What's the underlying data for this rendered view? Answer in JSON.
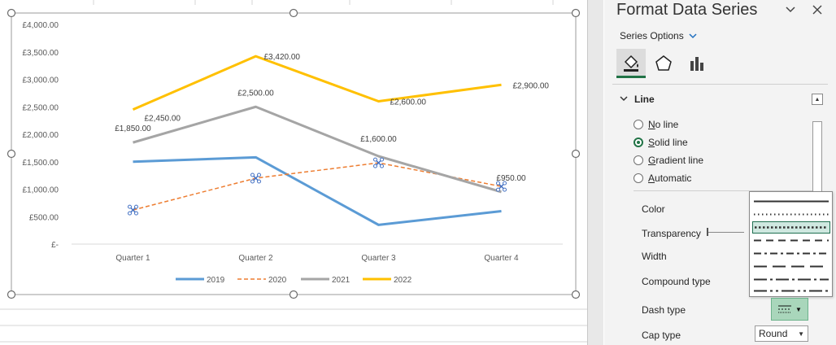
{
  "chart_data": {
    "type": "line",
    "categories": [
      "Quarter 1",
      "Quarter 2",
      "Quarter 3",
      "Quarter 4"
    ],
    "series": [
      {
        "name": "2019",
        "values": [
          1500,
          1580,
          350,
          600
        ],
        "color": "#5b9bd5",
        "style": "solid"
      },
      {
        "name": "2020",
        "values": [
          620,
          1200,
          1480,
          1050
        ],
        "color": "#ed7d31",
        "style": "dashed"
      },
      {
        "name": "2021",
        "values": [
          1850,
          2500,
          1600,
          950
        ],
        "color": "#a5a5a5",
        "style": "solid"
      },
      {
        "name": "2022",
        "values": [
          2450,
          3420,
          2600,
          2900
        ],
        "color": "#ffc000",
        "style": "solid"
      }
    ],
    "data_labels": {
      "2021": [
        "£1,850.00",
        "£2,500.00",
        "£1,600.00",
        "£950.00"
      ],
      "2022": [
        "£2,450.00",
        "£3,420.00",
        "£2,600.00",
        "£2,900.00"
      ]
    },
    "y_tick_labels": [
      "£-",
      "£500.00",
      "£1,000.00",
      "£1,500.00",
      "£2,000.00",
      "£2,500.00",
      "£3,000.00",
      "£3,500.00",
      "£4,000.00"
    ],
    "ylim": [
      0,
      4000
    ],
    "grid": false,
    "legend_position": "bottom",
    "title": "",
    "xlabel": "",
    "ylabel": ""
  },
  "pane": {
    "title": "Format Data Series",
    "series_options_label": "Series Options",
    "section_line_label": "Line",
    "radio_options": [
      {
        "label": "No line",
        "checked": false
      },
      {
        "label": "Solid line",
        "checked": true
      },
      {
        "label": "Gradient line",
        "checked": false
      },
      {
        "label": "Automatic",
        "checked": false
      }
    ],
    "props": {
      "color": "Color",
      "transparency": "Transparency",
      "width": "Width",
      "compound_type": "Compound type",
      "dash_type": "Dash type",
      "cap_type": "Cap type"
    },
    "cap_type_value": "Round",
    "icons": [
      "fill-line-icon",
      "effects-pentagon-icon",
      "series-options-bars-icon"
    ],
    "accent_color": "#217346"
  }
}
